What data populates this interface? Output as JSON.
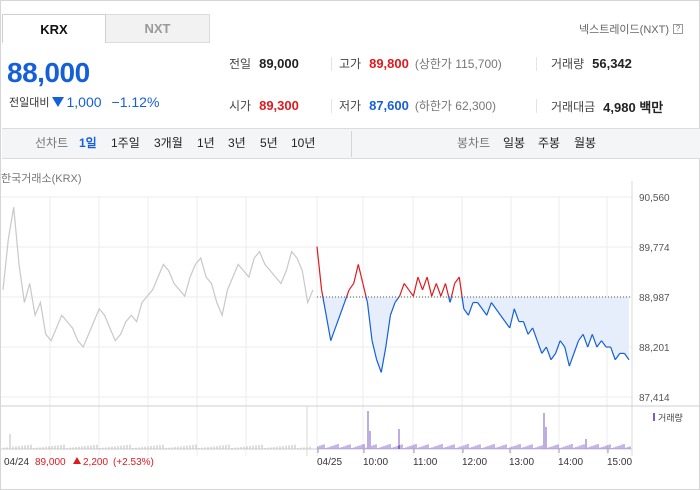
{
  "tabs": [
    {
      "label": "KRX",
      "active": true
    },
    {
      "label": "NXT",
      "active": false
    }
  ],
  "nxt_trade": {
    "label": "넥스트레이드(NXT)",
    "help": "?"
  },
  "price": {
    "current": "88,000",
    "change_label": "전일대비",
    "change_value": "1,000",
    "change_direction": "down",
    "change_pct": "−1.12%"
  },
  "stats": {
    "prev_close": {
      "label": "전일",
      "value": "89,000"
    },
    "high": {
      "label": "고가",
      "value": "89,800",
      "note": "(상한가 115,700)"
    },
    "volume": {
      "label": "거래량",
      "value": "56,342"
    },
    "open": {
      "label": "시가",
      "value": "89,300"
    },
    "low": {
      "label": "저가",
      "value": "87,600",
      "note": "(하한가 62,300)"
    },
    "amount": {
      "label": "거래대금",
      "value": "4,980 백만"
    }
  },
  "line_chart_bar": {
    "label": "선차트",
    "periods": [
      "1일",
      "1주일",
      "3개월",
      "1년",
      "3년",
      "5년",
      "10년"
    ],
    "selected": "1일"
  },
  "candle_chart_bar": {
    "label": "봉차트",
    "periods": [
      "일봉",
      "주봉",
      "월봉"
    ]
  },
  "source_label": "한국거래소(KRX)",
  "volume_legend": "거래량",
  "prev_day_info": {
    "date": "04/24",
    "close": "89,000",
    "change": "2,200",
    "pct": "(+2.53%)"
  },
  "colors": {
    "up": "#e0191e",
    "down": "#1560d8",
    "prev_line": "#c8c8c8",
    "fill": "#e6eefb"
  },
  "chart_data": {
    "type": "line",
    "ylim": [
      87414,
      90560
    ],
    "y_ticks": [
      "90,560",
      "89,774",
      "88,987",
      "88,201",
      "87,414"
    ],
    "x_ticks": [
      "04/24",
      "04/25",
      "10:00",
      "11:00",
      "12:00",
      "13:00",
      "14:00",
      "15:00"
    ],
    "baseline": 88987,
    "series": [
      {
        "values": [
          89100,
          89900,
          90400,
          89500,
          88900,
          89200,
          88700,
          88900,
          88400,
          88300,
          88500,
          88700,
          88600,
          88500,
          88300,
          88200,
          88400,
          88600,
          88800,
          88700,
          88500,
          88300,
          88400,
          88600,
          88700,
          88600,
          88900,
          89000,
          89100,
          89300,
          89500,
          89400,
          89200,
          89100,
          89000,
          89300,
          89500,
          89600,
          89300,
          89200,
          88900,
          88700,
          89100,
          89300,
          89500,
          89400,
          89300,
          89600,
          89700,
          89500,
          89400,
          89300,
          89200,
          89400,
          89700,
          89600,
          89400,
          88900,
          89100
        ]
      },
      {
        "values": [
          89780,
          89100,
          88700,
          88300,
          88500,
          88700,
          88900,
          89100,
          89200,
          89500,
          89200,
          88900,
          88300,
          88000,
          87800,
          88200,
          88700,
          88900,
          89000,
          89200,
          89100,
          89000,
          89300,
          89100,
          89300,
          89000,
          89200,
          89000,
          89200,
          88900,
          89200,
          89300,
          88800,
          88700,
          88900,
          88900,
          88800,
          88700,
          88900,
          88800,
          88700,
          88600,
          88500,
          88800,
          88600,
          88600,
          88400,
          88500,
          88300,
          88100,
          88200,
          88000,
          88100,
          88300,
          88200,
          87900,
          88100,
          88300,
          88400,
          88200,
          88400,
          88200,
          88300,
          88200,
          88200,
          88000,
          88100,
          88100,
          88000
        ]
      }
    ]
  }
}
